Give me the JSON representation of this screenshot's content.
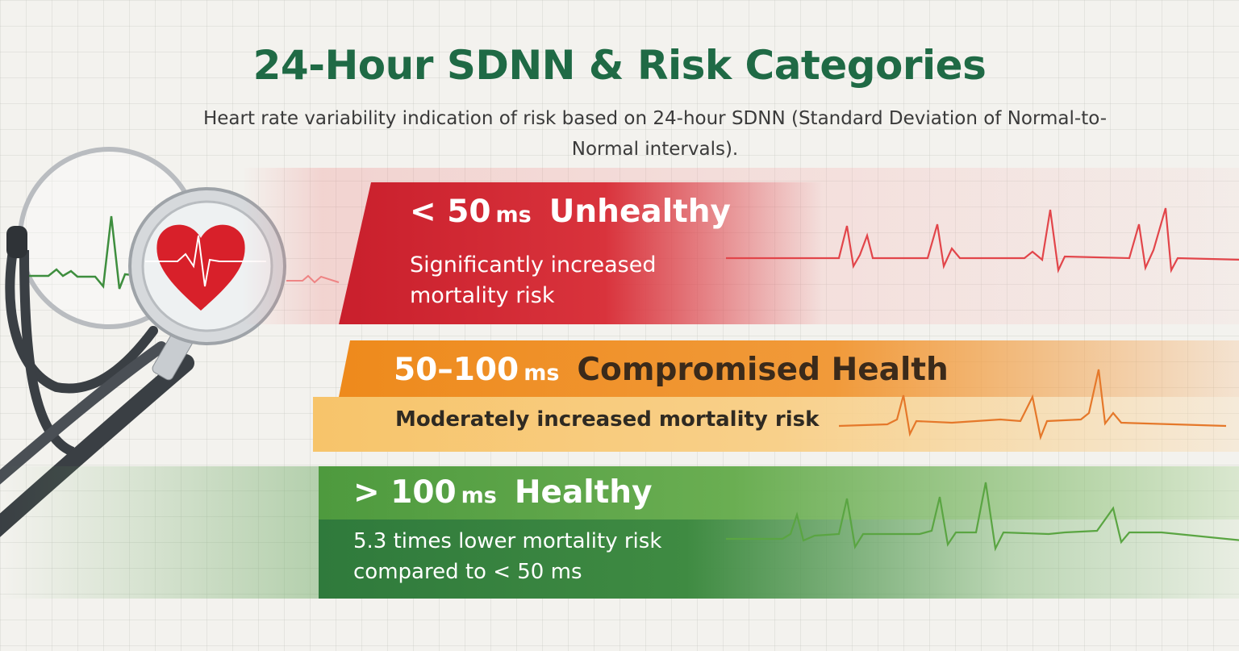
{
  "title": "24-Hour SDNN & Risk Categories",
  "subtitle": "Heart rate variability indication of risk based on 24-hour SDNN (Standard Deviation of Normal-to-Normal intervals).",
  "colors": {
    "title": "#1f6a45",
    "unhealthy": "#c91f2c",
    "compromised": "#ee8a1c",
    "healthy": "#3f8b42"
  },
  "illustration": {
    "icons": [
      "stethoscope-icon",
      "heart-icon",
      "ecg-waveform-icon"
    ]
  },
  "categories": [
    {
      "range": "< 50",
      "unit": "ms",
      "label": "Unhealthy",
      "description": "Significantly increased mortality risk"
    },
    {
      "range": "50–100",
      "unit": "ms",
      "label": "Compromised Health",
      "description": "Moderately increased mortality risk"
    },
    {
      "range": "> 100",
      "unit": "ms",
      "label": "Healthy",
      "description": "5.3 times lower mortality risk compared to < 50 ms"
    }
  ]
}
